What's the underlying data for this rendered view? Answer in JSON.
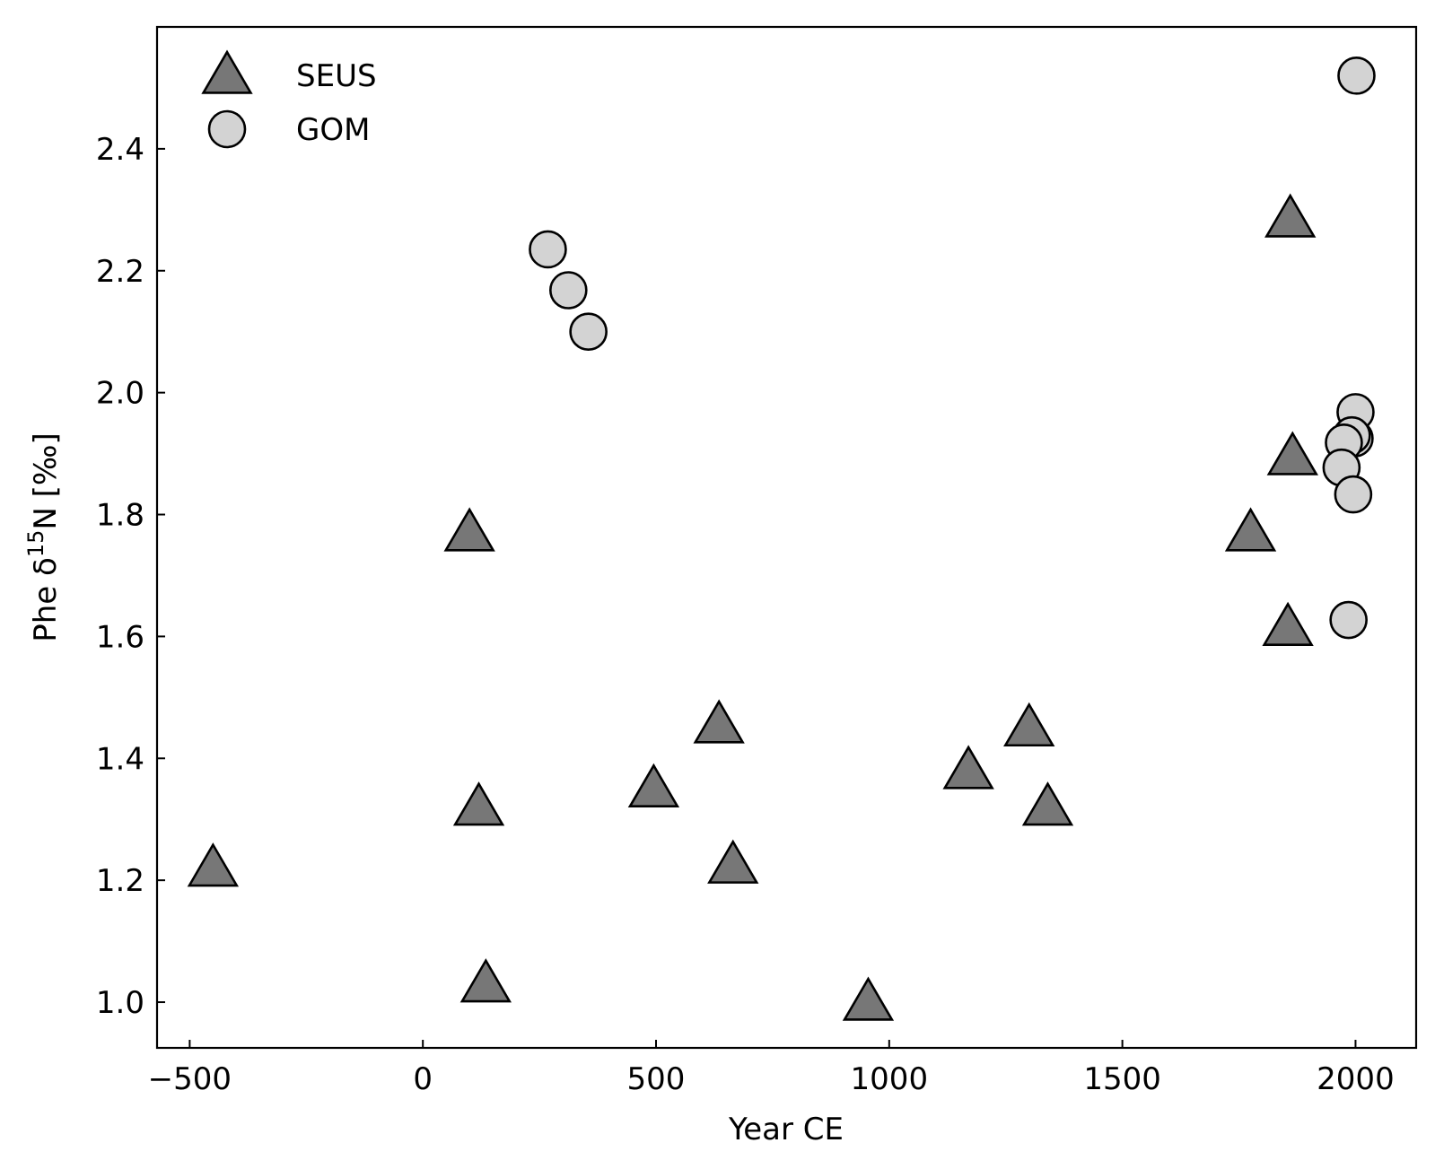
{
  "chart_data": {
    "type": "scatter",
    "xlabel": "Year CE",
    "ylabel_prefix": "Phe δ",
    "ylabel_sup": "15",
    "ylabel_suffix": "N [‰]",
    "xlim": [
      -570,
      2130
    ],
    "ylim": [
      0.925,
      2.6
    ],
    "x_ticks": [
      -500,
      0,
      500,
      1000,
      1500,
      2000
    ],
    "x_tick_labels": [
      "−500",
      "0",
      "500",
      "1000",
      "1500",
      "2000"
    ],
    "y_ticks": [
      1.0,
      1.2,
      1.4,
      1.6,
      1.8,
      2.0,
      2.2,
      2.4
    ],
    "y_tick_labels": [
      "1.0",
      "1.2",
      "1.4",
      "1.6",
      "1.8",
      "2.0",
      "2.2",
      "2.4"
    ],
    "grid": false,
    "legend_position": "top-left",
    "series": [
      {
        "name": "SEUS",
        "marker": "triangle",
        "color": "#777777",
        "edge_color": "#000000",
        "points": [
          {
            "x": -450,
            "y": 1.22
          },
          {
            "x": 100,
            "y": 1.77
          },
          {
            "x": 120,
            "y": 1.32
          },
          {
            "x": 135,
            "y": 1.03
          },
          {
            "x": 495,
            "y": 1.35
          },
          {
            "x": 635,
            "y": 1.455
          },
          {
            "x": 665,
            "y": 1.225
          },
          {
            "x": 955,
            "y": 1.0
          },
          {
            "x": 1170,
            "y": 1.38
          },
          {
            "x": 1300,
            "y": 1.45
          },
          {
            "x": 1340,
            "y": 1.32
          },
          {
            "x": 1775,
            "y": 1.77
          },
          {
            "x": 1855,
            "y": 1.615
          },
          {
            "x": 1860,
            "y": 2.285
          },
          {
            "x": 1865,
            "y": 1.895
          }
        ]
      },
      {
        "name": "GOM",
        "marker": "circle",
        "color": "#d3d3d3",
        "edge_color": "#000000",
        "points": [
          {
            "x": 268,
            "y": 2.235
          },
          {
            "x": 312,
            "y": 2.168
          },
          {
            "x": 355,
            "y": 2.1
          },
          {
            "x": 2002,
            "y": 2.52
          },
          {
            "x": 2000,
            "y": 1.968
          },
          {
            "x": 1998,
            "y": 1.925
          },
          {
            "x": 1992,
            "y": 1.93
          },
          {
            "x": 1975,
            "y": 1.918
          },
          {
            "x": 1970,
            "y": 1.877
          },
          {
            "x": 1995,
            "y": 1.833
          },
          {
            "x": 1985,
            "y": 1.627
          }
        ]
      }
    ]
  }
}
